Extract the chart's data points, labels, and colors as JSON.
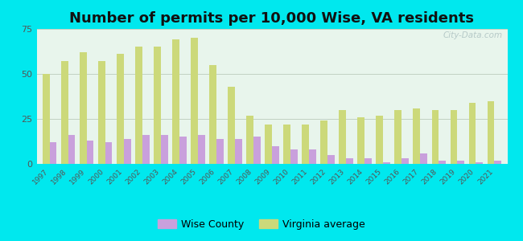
{
  "years": [
    1997,
    1998,
    1999,
    2000,
    2001,
    2002,
    2003,
    2004,
    2005,
    2006,
    2007,
    2008,
    2009,
    2010,
    2011,
    2012,
    2013,
    2014,
    2015,
    2016,
    2017,
    2018,
    2019,
    2020,
    2021
  ],
  "wise_county": [
    12,
    16,
    13,
    12,
    14,
    16,
    16,
    15,
    16,
    14,
    14,
    15,
    10,
    8,
    8,
    5,
    3,
    3,
    1,
    3,
    6,
    2,
    2,
    1,
    2
  ],
  "virginia_avg": [
    50,
    57,
    62,
    57,
    61,
    65,
    65,
    69,
    70,
    55,
    43,
    27,
    22,
    22,
    22,
    24,
    30,
    26,
    27,
    30,
    31,
    30,
    30,
    34,
    35
  ],
  "wise_color": "#c9a0dc",
  "va_color": "#ccd97a",
  "plot_bg": "#e8f5ec",
  "outer_bg": "#00e8ee",
  "title": "Number of permits per 10,000 Wise, VA residents",
  "title_fontsize": 13,
  "ylim": [
    0,
    75
  ],
  "yticks": [
    0,
    25,
    50,
    75
  ],
  "legend_wise": "Wise County",
  "legend_va": "Virginia average",
  "watermark": "City-Data.com"
}
